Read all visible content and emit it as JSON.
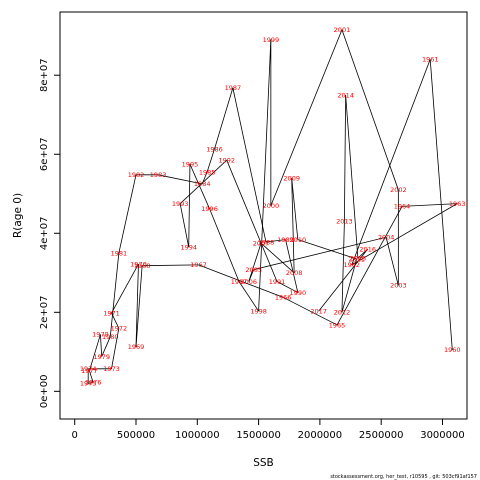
{
  "chart_data": {
    "type": "line",
    "xlabel": "SSB",
    "ylabel": "R(age 0)",
    "xlim": [
      -120000,
      3200000
    ],
    "ylim": [
      -7000000,
      96000000
    ],
    "x_ticks": [
      {
        "v": 0,
        "label": "0"
      },
      {
        "v": 500000,
        "label": "500000"
      },
      {
        "v": 1000000,
        "label": "1000000"
      },
      {
        "v": 1500000,
        "label": "1500000"
      },
      {
        "v": 2000000,
        "label": "2000000"
      },
      {
        "v": 2500000,
        "label": "2500000"
      },
      {
        "v": 3000000,
        "label": "3000000"
      }
    ],
    "y_ticks": [
      {
        "v": 0,
        "label": "0e+00"
      },
      {
        "v": 20000000,
        "label": "2e+07"
      },
      {
        "v": 40000000,
        "label": "4e+07"
      },
      {
        "v": 60000000,
        "label": "6e+07"
      },
      {
        "v": 80000000,
        "label": "8e+07"
      }
    ],
    "line_color": "#000000",
    "label_color": "#ff0000",
    "footer": "stockassessment.org, her_test, r10595 , git: 503cf91af157",
    "points": [
      {
        "year": "1960",
        "x": 3080000,
        "y": 10500000
      },
      {
        "year": "1961",
        "x": 2900000,
        "y": 84000000
      },
      {
        "year": "1962",
        "x": 2260000,
        "y": 32000000
      },
      {
        "year": "1963",
        "x": 3120000,
        "y": 47500000
      },
      {
        "year": "1964",
        "x": 2670000,
        "y": 46800000
      },
      {
        "year": "1965",
        "x": 2140000,
        "y": 16800000
      },
      {
        "year": "1966",
        "x": 1700000,
        "y": 23800000
      },
      {
        "year": "1967",
        "x": 1010000,
        "y": 32000000
      },
      {
        "year": "1968",
        "x": 550000,
        "y": 31800000
      },
      {
        "year": "1969",
        "x": 500000,
        "y": 11300000
      },
      {
        "year": "1970",
        "x": 520000,
        "y": 32200000
      },
      {
        "year": "1971",
        "x": 300000,
        "y": 19800000
      },
      {
        "year": "1972",
        "x": 360000,
        "y": 16000000
      },
      {
        "year": "1973",
        "x": 300000,
        "y": 5700000
      },
      {
        "year": "1974",
        "x": 110000,
        "y": 5700000
      },
      {
        "year": "1975",
        "x": 110000,
        "y": 2000000
      },
      {
        "year": "1976",
        "x": 150000,
        "y": 2300000
      },
      {
        "year": "1977",
        "x": 120000,
        "y": 5200000
      },
      {
        "year": "1978",
        "x": 210000,
        "y": 14400000
      },
      {
        "year": "1979",
        "x": 220000,
        "y": 8800000
      },
      {
        "year": "1980",
        "x": 290000,
        "y": 13800000
      },
      {
        "year": "1981",
        "x": 360000,
        "y": 35000000
      },
      {
        "year": "1982",
        "x": 500000,
        "y": 54800000
      },
      {
        "year": "1983",
        "x": 680000,
        "y": 54800000
      },
      {
        "year": "1984",
        "x": 1040000,
        "y": 52500000
      },
      {
        "year": "1985",
        "x": 1080000,
        "y": 55500000
      },
      {
        "year": "1986",
        "x": 1140000,
        "y": 61300000
      },
      {
        "year": "1987",
        "x": 1290000,
        "y": 76800000
      },
      {
        "year": "1988",
        "x": 1560000,
        "y": 37800000
      },
      {
        "year": "1989",
        "x": 1720000,
        "y": 38400000
      },
      {
        "year": "1990",
        "x": 1820000,
        "y": 25000000
      },
      {
        "year": "1991",
        "x": 1650000,
        "y": 27800000
      },
      {
        "year": "1992",
        "x": 1240000,
        "y": 58500000
      },
      {
        "year": "1993",
        "x": 860000,
        "y": 47500000
      },
      {
        "year": "1994",
        "x": 930000,
        "y": 36500000
      },
      {
        "year": "1995",
        "x": 940000,
        "y": 57500000
      },
      {
        "year": "1996",
        "x": 1100000,
        "y": 46200000
      },
      {
        "year": "1997",
        "x": 1340000,
        "y": 27800000
      },
      {
        "year": "1998",
        "x": 1500000,
        "y": 20300000
      },
      {
        "year": "1999",
        "x": 1600000,
        "y": 89000000
      },
      {
        "year": "2000",
        "x": 1600000,
        "y": 47000000
      },
      {
        "year": "2001",
        "x": 2180000,
        "y": 91500000
      },
      {
        "year": "2002",
        "x": 2640000,
        "y": 51000000
      },
      {
        "year": "2003",
        "x": 2640000,
        "y": 26800000
      },
      {
        "year": "2004",
        "x": 2540000,
        "y": 39000000
      },
      {
        "year": "2005",
        "x": 1460000,
        "y": 30800000
      },
      {
        "year": "2006",
        "x": 1420000,
        "y": 27800000
      },
      {
        "year": "2007",
        "x": 1520000,
        "y": 37500000
      },
      {
        "year": "2008",
        "x": 1790000,
        "y": 30000000
      },
      {
        "year": "2009",
        "x": 1770000,
        "y": 54000000
      },
      {
        "year": "2010",
        "x": 1820000,
        "y": 38400000
      },
      {
        "year": "2011",
        "x": 2300000,
        "y": 33500000
      },
      {
        "year": "2012",
        "x": 2180000,
        "y": 20000000
      },
      {
        "year": "2013",
        "x": 2200000,
        "y": 43000000
      },
      {
        "year": "2014",
        "x": 2210000,
        "y": 75000000
      },
      {
        "year": "2015",
        "x": 2310000,
        "y": 33700000
      },
      {
        "year": "2016",
        "x": 2390000,
        "y": 36000000
      },
      {
        "year": "2017",
        "x": 1990000,
        "y": 20300000
      }
    ]
  }
}
